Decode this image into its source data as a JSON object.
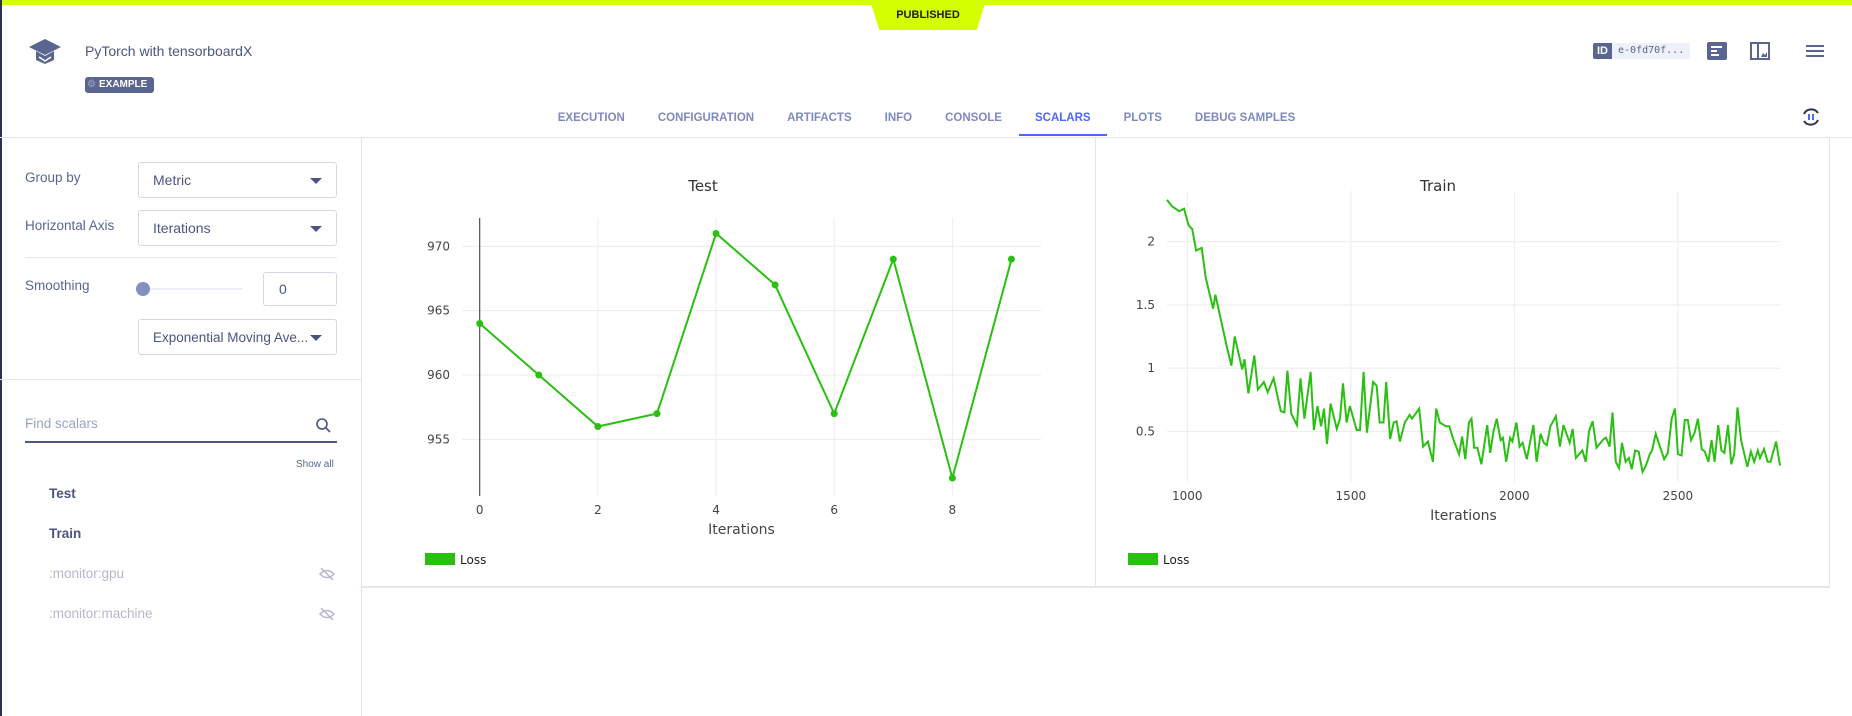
{
  "header": {
    "status_badge": "PUBLISHED",
    "title": "PyTorch with tensorboardX",
    "tag": "EXAMPLE",
    "id_label": "ID",
    "id_value": "e-0fd70f...",
    "icons": [
      "graduation-cap-icon",
      "details-panel-icon",
      "split-view-icon",
      "menu-icon",
      "refresh-pause-icon"
    ]
  },
  "tabs": [
    {
      "label": "EXECUTION"
    },
    {
      "label": "CONFIGURATION"
    },
    {
      "label": "ARTIFACTS"
    },
    {
      "label": "INFO"
    },
    {
      "label": "CONSOLE"
    },
    {
      "label": "SCALARS",
      "active": true
    },
    {
      "label": "PLOTS"
    },
    {
      "label": "DEBUG SAMPLES"
    }
  ],
  "sidebar": {
    "group_by_label": "Group by",
    "group_by_value": "Metric",
    "haxis_label": "Horizontal Axis",
    "haxis_value": "Iterations",
    "smoothing_label": "Smoothing",
    "smoothing_value": "0",
    "smoothing_level": 0,
    "smoothing_method": "Exponential Moving Ave...",
    "search_placeholder": "Find scalars",
    "show_all": "Show all",
    "items": [
      {
        "label": "Test",
        "hidden": false
      },
      {
        "label": "Train",
        "hidden": false
      },
      {
        "label": ":monitor:gpu",
        "hidden": true
      },
      {
        "label": ":monitor:machine",
        "hidden": true
      }
    ]
  },
  "colors": {
    "accent": "#4d66ff",
    "brand": "#5a6590",
    "highlight": "#d4ff00",
    "series": "#2ac012"
  },
  "chart_data": [
    {
      "type": "line",
      "title": "Test",
      "xlabel": "Iterations",
      "ylabel": "",
      "xlim": [
        -0.3,
        9.5
      ],
      "ylim": [
        950.6,
        972.2
      ],
      "xticks": [
        0,
        2,
        4,
        6,
        8
      ],
      "yticks": [
        955,
        960,
        965,
        970
      ],
      "grid": true,
      "legend": "bottom-left",
      "markers": true,
      "series": [
        {
          "name": "Loss",
          "x": [
            0,
            1,
            2,
            3,
            4,
            5,
            6,
            7,
            8,
            9
          ],
          "y": [
            964,
            960,
            956,
            957,
            971,
            967,
            957,
            969,
            952,
            969
          ]
        }
      ]
    },
    {
      "type": "line",
      "title": "Train",
      "xlabel": "Iterations",
      "ylabel": "",
      "xlim": [
        938,
        2812
      ],
      "ylim": [
        0.1,
        2.4
      ],
      "xticks": [
        1000,
        1500,
        2000,
        2500
      ],
      "yticks": [
        0.5,
        1,
        1.5,
        2
      ],
      "grid": true,
      "legend": "bottom-left",
      "markers": false,
      "series": [
        {
          "name": "Loss",
          "x": [
            938,
            953,
            975,
            990,
            1004,
            1015,
            1027,
            1044,
            1056,
            1079,
            1086,
            1120,
            1135,
            1145,
            1168,
            1175,
            1187,
            1205,
            1216,
            1234,
            1246,
            1264,
            1286,
            1297,
            1306,
            1318,
            1335,
            1346,
            1358,
            1377,
            1387,
            1398,
            1409,
            1418,
            1427,
            1438,
            1457,
            1467,
            1476,
            1487,
            1497,
            1518,
            1528,
            1539,
            1549,
            1568,
            1579,
            1588,
            1600,
            1608,
            1620,
            1631,
            1640,
            1650,
            1665,
            1680,
            1687,
            1709,
            1721,
            1736,
            1751,
            1761,
            1772,
            1791,
            1801,
            1813,
            1831,
            1840,
            1850,
            1861,
            1869,
            1877,
            1887,
            1899,
            1917,
            1926,
            1936,
            1946,
            1958,
            1965,
            1975,
            1987,
            1994,
            2006,
            2016,
            2025,
            2038,
            2058,
            2068,
            2080,
            2090,
            2099,
            2110,
            2127,
            2139,
            2150,
            2169,
            2178,
            2188,
            2208,
            2218,
            2228,
            2239,
            2251,
            2273,
            2280,
            2291,
            2300,
            2310,
            2320,
            2329,
            2340,
            2350,
            2359,
            2369,
            2380,
            2392,
            2402,
            2414,
            2421,
            2432,
            2458,
            2469,
            2481,
            2491,
            2500,
            2511,
            2521,
            2530,
            2540,
            2551,
            2561,
            2573,
            2582,
            2593,
            2603,
            2612,
            2623,
            2633,
            2642,
            2653,
            2663,
            2672,
            2682,
            2693,
            2712,
            2723,
            2733,
            2744,
            2751,
            2763,
            2774,
            2783,
            2800,
            2812
          ],
          "y": [
            2.33,
            2.28,
            2.24,
            2.26,
            2.13,
            2.1,
            1.93,
            1.95,
            1.72,
            1.47,
            1.58,
            1.18,
            1.02,
            1.25,
            0.99,
            1.07,
            0.8,
            1.1,
            0.83,
            0.89,
            0.81,
            0.92,
            0.66,
            0.65,
            0.98,
            0.64,
            0.55,
            0.92,
            0.6,
            0.97,
            0.51,
            0.7,
            0.54,
            0.68,
            0.4,
            0.72,
            0.52,
            0.6,
            0.88,
            0.57,
            0.7,
            0.51,
            0.51,
            0.97,
            0.49,
            0.89,
            0.86,
            0.57,
            0.57,
            0.89,
            0.44,
            0.57,
            0.58,
            0.42,
            0.57,
            0.63,
            0.6,
            0.68,
            0.38,
            0.42,
            0.26,
            0.68,
            0.57,
            0.54,
            0.54,
            0.44,
            0.32,
            0.46,
            0.28,
            0.57,
            0.6,
            0.37,
            0.37,
            0.24,
            0.55,
            0.33,
            0.5,
            0.6,
            0.43,
            0.45,
            0.26,
            0.45,
            0.42,
            0.57,
            0.38,
            0.41,
            0.28,
            0.55,
            0.26,
            0.48,
            0.41,
            0.39,
            0.54,
            0.62,
            0.38,
            0.55,
            0.41,
            0.52,
            0.29,
            0.35,
            0.26,
            0.5,
            0.58,
            0.37,
            0.44,
            0.45,
            0.38,
            0.65,
            0.26,
            0.21,
            0.41,
            0.26,
            0.29,
            0.2,
            0.35,
            0.34,
            0.18,
            0.23,
            0.32,
            0.35,
            0.48,
            0.28,
            0.33,
            0.6,
            0.68,
            0.32,
            0.31,
            0.59,
            0.59,
            0.43,
            0.49,
            0.6,
            0.36,
            0.34,
            0.26,
            0.43,
            0.26,
            0.55,
            0.35,
            0.33,
            0.55,
            0.24,
            0.32,
            0.69,
            0.43,
            0.22,
            0.34,
            0.26,
            0.35,
            0.29,
            0.36,
            0.26,
            0.26,
            0.42,
            0.23
          ]
        }
      ]
    }
  ]
}
